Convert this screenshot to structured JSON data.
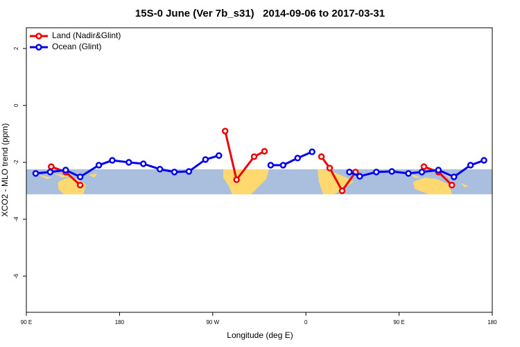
{
  "chart_data": {
    "type": "line",
    "title": "15S-0 June (Ver 7b_s31)   2014-09-06 to 2017-03-31",
    "x_label": "Longitude (deg E)",
    "y_label": "XCO2 - MLO trend (ppm)",
    "xlim": [
      90,
      540
    ],
    "ylim": [
      -7.27,
      2.73
    ],
    "xticks": [
      {
        "value": 90,
        "label": "90 E"
      },
      {
        "value": 180,
        "label": "180"
      },
      {
        "value": 270,
        "label": "90 W"
      },
      {
        "value": 360,
        "label": "0"
      },
      {
        "value": 450,
        "label": "90 E"
      },
      {
        "value": 540,
        "label": "180"
      }
    ],
    "yticks": [
      -6,
      -4,
      -2,
      0,
      2
    ],
    "legend": "top-left",
    "series": [
      {
        "name": "Land (Nadir&Glint)",
        "color": "#ee0000",
        "x": [
          114,
          128,
          142,
          null,
          282,
          293,
          310,
          320,
          null,
          375,
          383,
          395,
          408,
          null,
          474,
          488,
          501
        ],
        "values": [
          -2.15,
          -2.34,
          -2.8,
          null,
          -0.9,
          -2.61,
          -1.8,
          -1.61,
          null,
          -1.8,
          -2.2,
          -3.0,
          -2.34,
          null,
          -2.15,
          -2.34,
          -2.8
        ]
      },
      {
        "name": "Ocean (Glint)",
        "color": "#0000ee",
        "x": [
          99,
          113,
          128,
          142,
          160,
          173,
          189,
          203,
          219,
          233,
          247,
          263,
          276,
          null,
          326,
          338,
          352,
          366,
          null,
          402,
          412,
          428,
          443,
          459,
          472,
          488,
          503,
          519,
          532
        ],
        "values": [
          -2.39,
          -2.34,
          -2.27,
          -2.51,
          -2.1,
          -1.93,
          -2.0,
          -2.05,
          -2.24,
          -2.34,
          -2.32,
          -1.9,
          -1.76,
          null,
          -2.1,
          -2.1,
          -1.85,
          -1.63,
          null,
          -2.34,
          -2.49,
          -2.34,
          -2.32,
          -2.39,
          -2.34,
          -2.27,
          -2.51,
          -2.1,
          -1.93
        ]
      }
    ]
  }
}
